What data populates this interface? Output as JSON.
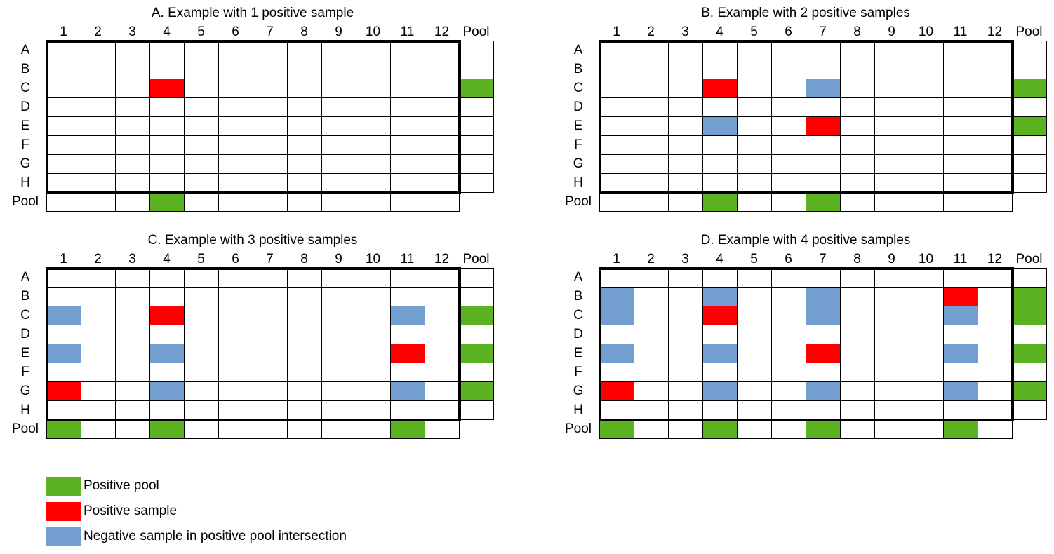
{
  "colors": {
    "positive_pool": "#5bb322",
    "positive_sample": "#ff0000",
    "negative_intersection": "#729fcf",
    "empty": "#ffffff",
    "border": "#000000"
  },
  "column_labels": [
    "1",
    "2",
    "3",
    "4",
    "5",
    "6",
    "7",
    "8",
    "9",
    "10",
    "11",
    "12",
    "Pool"
  ],
  "row_labels": [
    "A",
    "B",
    "C",
    "D",
    "E",
    "F",
    "G",
    "H",
    "Pool"
  ],
  "panels": [
    {
      "title": "A. Example with 1 positive sample",
      "positive_samples": [
        "C4"
      ],
      "negative_intersections": [],
      "positive_row_pools": [
        "C"
      ],
      "positive_column_pools": [
        "4"
      ]
    },
    {
      "title": "B. Example with 2 positive samples",
      "positive_samples": [
        "C4",
        "E7"
      ],
      "negative_intersections": [
        "C7",
        "E4"
      ],
      "positive_row_pools": [
        "C",
        "E"
      ],
      "positive_column_pools": [
        "4",
        "7"
      ]
    },
    {
      "title": "C. Example with 3 positive samples",
      "positive_samples": [
        "C4",
        "E11",
        "G1"
      ],
      "negative_intersections": [
        "C1",
        "C11",
        "E1",
        "E4",
        "G4",
        "G11"
      ],
      "positive_row_pools": [
        "C",
        "E",
        "G"
      ],
      "positive_column_pools": [
        "1",
        "4",
        "11"
      ]
    },
    {
      "title": "D. Example with 4 positive samples",
      "positive_samples": [
        "B11",
        "C4",
        "E7",
        "G1"
      ],
      "negative_intersections": [
        "B1",
        "B4",
        "B7",
        "C1",
        "C7",
        "C11",
        "E1",
        "E4",
        "E11",
        "G4",
        "G7",
        "G11"
      ],
      "positive_row_pools": [
        "B",
        "C",
        "E",
        "G"
      ],
      "positive_column_pools": [
        "1",
        "4",
        "7",
        "11"
      ]
    }
  ],
  "legend": [
    {
      "label": "Positive pool",
      "color": "#5bb322"
    },
    {
      "label": "Positive sample",
      "color": "#ff0000"
    },
    {
      "label": "Negative sample in positive pool intersection",
      "color": "#729fcf"
    }
  ]
}
